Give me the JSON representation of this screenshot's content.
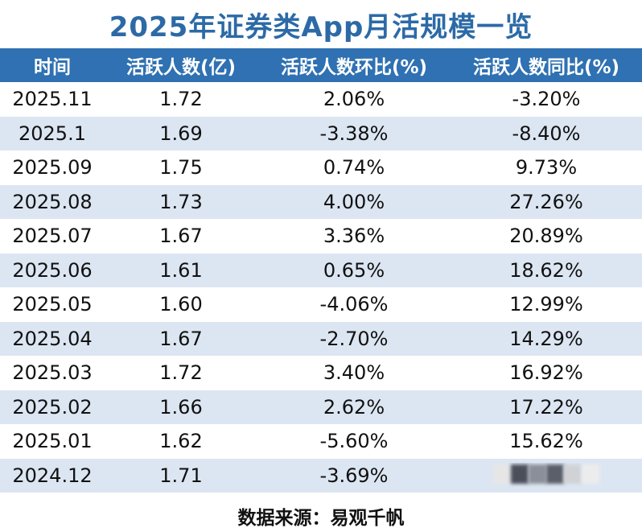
{
  "title": "2025年证券类App月活规模一览",
  "table": {
    "headers": [
      "时间",
      "活跃人数(亿)",
      "活跃人数环比(%)",
      "活跃人数同比(%)"
    ],
    "rows": [
      [
        "2025.11",
        "1.72",
        "2.06%",
        "-3.20%"
      ],
      [
        "2025.1",
        "1.69",
        "-3.38%",
        "-8.40%"
      ],
      [
        "2025.09",
        "1.75",
        "0.74%",
        "9.73%"
      ],
      [
        "2025.08",
        "1.73",
        "4.00%",
        "27.26%"
      ],
      [
        "2025.07",
        "1.67",
        "3.36%",
        "20.89%"
      ],
      [
        "2025.06",
        "1.61",
        "0.65%",
        "18.62%"
      ],
      [
        "2025.05",
        "1.60",
        "-4.06%",
        "12.99%"
      ],
      [
        "2025.04",
        "1.67",
        "-2.70%",
        "14.29%"
      ],
      [
        "2025.03",
        "1.72",
        "3.40%",
        "16.92%"
      ],
      [
        "2025.02",
        "1.66",
        "2.62%",
        "17.22%"
      ],
      [
        "2025.01",
        "1.62",
        "-5.60%",
        "15.62%"
      ],
      [
        "2024.12",
        "1.71",
        "-3.69%",
        ""
      ]
    ]
  },
  "footer": "数据来源：易观千帆",
  "colors": {
    "title": "#2c6aa6",
    "header_bg": "#2f71b2",
    "alt_row_bg": "#dce6f2"
  }
}
